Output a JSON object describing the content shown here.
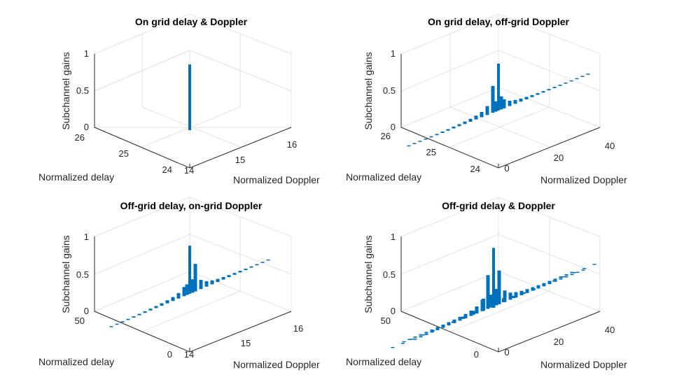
{
  "colors": {
    "series": "#0072bd",
    "axis": "#262626",
    "grid": "#e3e3e3"
  },
  "chart_data": [
    {
      "type": "bar3",
      "title": "On grid delay & Doppler",
      "xlabel": "Normalized Doppler",
      "ylabel": "Normalized delay",
      "zlabel": "Subchannel gains",
      "xticks": [
        "14",
        "15",
        "16"
      ],
      "yticks": [
        "24",
        "25",
        "26"
      ],
      "zticks": [
        "0",
        "0.5",
        "1"
      ],
      "zlim": [
        0,
        1
      ],
      "peak": 0.93,
      "spread": "none"
    },
    {
      "type": "bar3",
      "title": "On grid delay, off-grid Doppler",
      "xlabel": "Normalized Doppler",
      "ylabel": "Normalized delay",
      "zlabel": "Subchannel gains",
      "xticks": [
        "0",
        "20",
        "40"
      ],
      "yticks": [
        "24",
        "25",
        "26"
      ],
      "zticks": [
        "0",
        "0.5",
        "1"
      ],
      "zlim": [
        0,
        1
      ],
      "peak": 0.93,
      "spread": "doppler"
    },
    {
      "type": "bar3",
      "title": "Off-grid delay, on-grid Doppler",
      "xlabel": "Normalized Doppler",
      "ylabel": "Normalized delay",
      "zlabel": "Subchannel gains",
      "xticks": [
        "14",
        "15",
        "16"
      ],
      "yticks": [
        "0",
        "50"
      ],
      "zticks": [
        "0",
        "0.5",
        "1"
      ],
      "zlim": [
        0,
        1
      ],
      "peak": 0.93,
      "spread": "delay"
    },
    {
      "type": "bar3",
      "title": "Off-grid delay & Doppler",
      "xlabel": "Normalized Doppler",
      "ylabel": "Normalized delay",
      "zlabel": "Subchannel gains",
      "xticks": [
        "0",
        "20",
        "40"
      ],
      "yticks": [
        "0",
        "50"
      ],
      "zticks": [
        "0",
        "0.5",
        "1"
      ],
      "zlim": [
        0,
        1
      ],
      "peak": 0.93,
      "spread": "both"
    }
  ]
}
